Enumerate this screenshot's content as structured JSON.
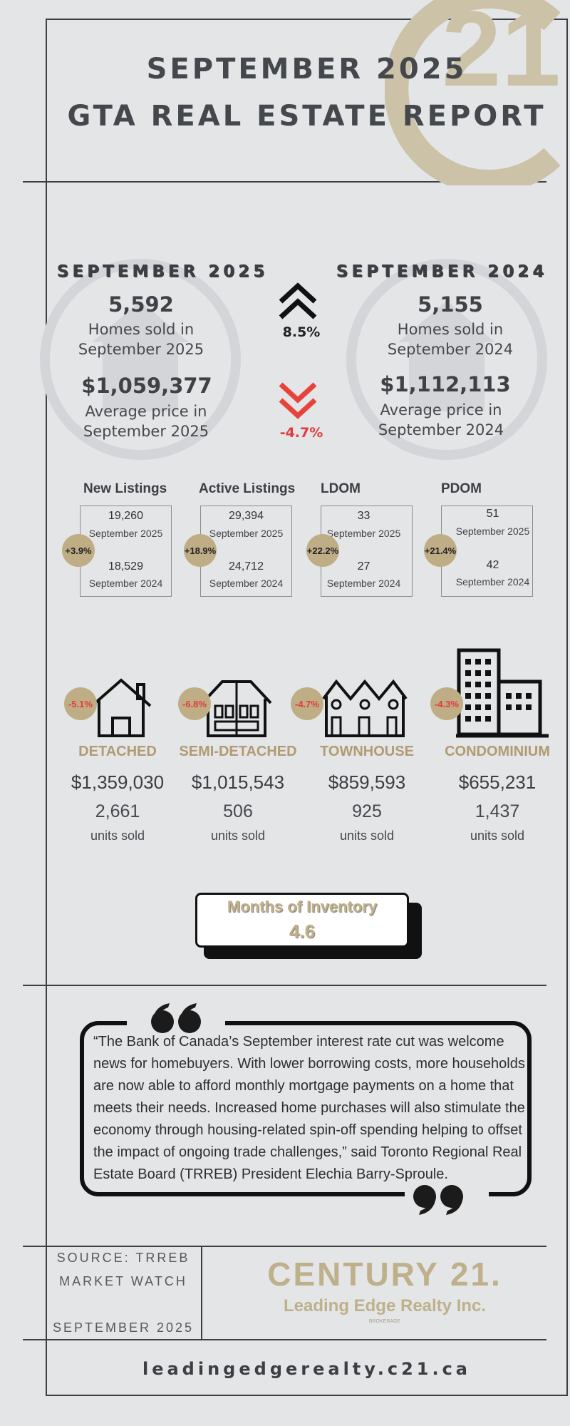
{
  "header": {
    "title_line1": "SEPTEMBER 2025",
    "title_line2": "GTA REAL ESTATE REPORT"
  },
  "comparison": {
    "current": {
      "heading": "SEPTEMBER 2025",
      "homes_sold": "5,592",
      "homes_sold_label_1": "Homes sold in",
      "homes_sold_label_2": "September 2025",
      "avg_price": "$1,059,377",
      "avg_price_label_1": "Average price in",
      "avg_price_label_2": "September 2025"
    },
    "previous": {
      "heading": "SEPTEMBER 2024",
      "homes_sold": "5,155",
      "homes_sold_label_1": "Homes sold in",
      "homes_sold_label_2": "September 2024",
      "avg_price": "$1,112,113",
      "avg_price_label_1": "Average price in",
      "avg_price_label_2": "September 2024"
    },
    "sales_change": "8.5%",
    "price_change": "-4.7%"
  },
  "stats": [
    {
      "label": "New Listings",
      "change": "+3.9%",
      "current_value": "19,260",
      "current_caption": "September 2025",
      "previous_value": "18,529",
      "previous_caption": "September 2024"
    },
    {
      "label": "Active Listings",
      "change": "+18.9%",
      "current_value": "29,394",
      "current_caption": "September 2025",
      "previous_value": "24,712",
      "previous_caption": "September 2024"
    },
    {
      "label": "LDOM",
      "change": "+22.2%",
      "current_value": "33",
      "current_caption": "September 2025",
      "previous_value": "27",
      "previous_caption": "September 2024"
    },
    {
      "label": "PDOM",
      "change": "+21.4%",
      "current_value": "51",
      "current_caption": "September 2025",
      "previous_value": "42",
      "previous_caption": "September 2024"
    }
  ],
  "property_types": [
    {
      "name": "DETACHED",
      "change": "-5.1%",
      "price": "$1,359,030",
      "units": "2,661",
      "units_caption": "units sold",
      "icon": "detached-house-icon"
    },
    {
      "name": "SEMI-DETACHED",
      "change": "-6.8%",
      "price": "$1,015,543",
      "units": "506",
      "units_caption": "units sold",
      "icon": "semi-detached-icon"
    },
    {
      "name": "TOWNHOUSE",
      "change": "-4.7%",
      "price": "$859,593",
      "units": "925",
      "units_caption": "units sold",
      "icon": "townhouse-icon"
    },
    {
      "name": "CONDOMINIUM",
      "change": "-4.3%",
      "price": "$655,231",
      "units": "1,437",
      "units_caption": "units sold",
      "icon": "condominium-icon"
    }
  ],
  "inventory": {
    "label": "Months of Inventory",
    "value": "4.6"
  },
  "quote": {
    "text": "“The Bank of Canada’s September interest rate cut was welcome news for homebuyers. With lower borrowing costs, more households are now able to afford monthly mortgage payments on a home that meets their needs. Increased home purchases will also stimulate the economy through housing-related spin-off spending helping to offset the impact of ongoing trade challenges,” said Toronto Regional Real Estate Board (TRREB) President Elechia Barry-Sproule."
  },
  "footer": {
    "source_line1": "SOURCE: TRREB",
    "source_line2": "MARKET WATCH",
    "source_date": "SEPTEMBER 2025",
    "brand": "CENTURY 21.",
    "brokerage": "Leading Edge Realty Inc.",
    "brokerage_small": "BROKERAGE",
    "url": "leadingedgerealty.c21.ca"
  },
  "colors": {
    "background": "#e3e5e7",
    "gold": "#b09b72",
    "bubble": "#bfad86",
    "negative": "#e23b3b",
    "text": "#3b3e43"
  }
}
